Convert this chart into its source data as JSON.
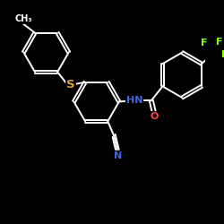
{
  "bg_color": "#000000",
  "bond_color": "#ffffff",
  "atom_colors": {
    "F": "#7fff00",
    "N": "#4169e1",
    "O": "#ff4444",
    "S": "#daa520",
    "C": "#ffffff",
    "H": "#ffffff"
  },
  "font_size_atom": 8.0,
  "line_width": 1.4,
  "figsize": [
    2.5,
    2.5
  ],
  "dpi": 100,
  "xlim": [
    -1.5,
    8.5
  ],
  "ylim": [
    -2.0,
    8.0
  ]
}
